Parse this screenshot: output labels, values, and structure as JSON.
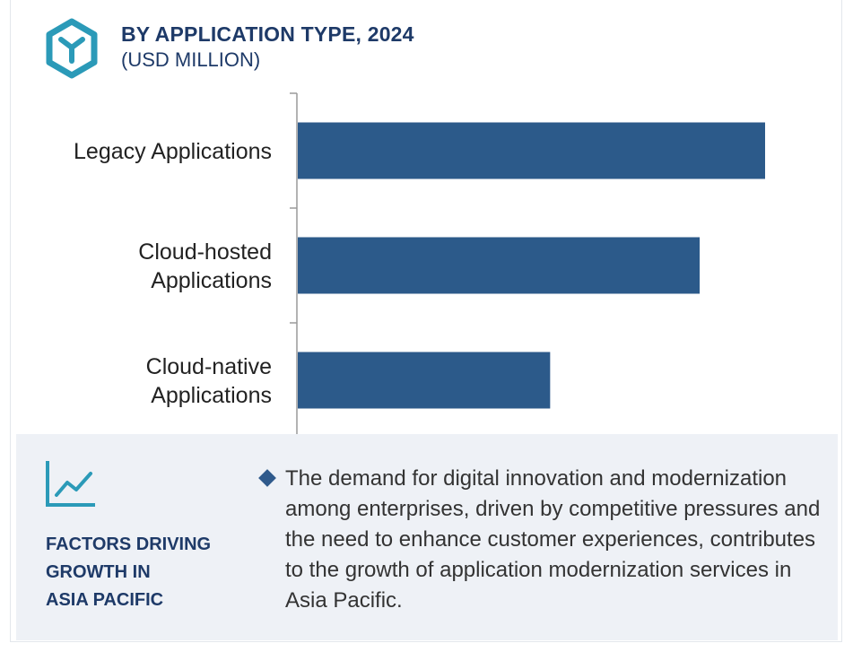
{
  "header": {
    "title": "BY APPLICATION TYPE, 2024",
    "subtitle": "(USD MILLION)",
    "logo_icon": "cube-y-icon",
    "accent_color": "#2b9ab8"
  },
  "chart_data": {
    "type": "bar",
    "orientation": "horizontal",
    "title": "BY APPLICATION TYPE, 2024",
    "subtitle": "(USD MILLION)",
    "categories": [
      "Legacy Applications",
      "Cloud-hosted Applications",
      "Cloud-native Applications"
    ],
    "category_lines": [
      [
        "Legacy Applications"
      ],
      [
        "Cloud-hosted",
        "Applications"
      ],
      [
        "Cloud-native",
        "Applications"
      ]
    ],
    "values": [
      100,
      86,
      54
    ],
    "value_scale": "relative (no axis values shown)",
    "bar_color": "#2c5a8a",
    "grid": false,
    "legend": "none"
  },
  "factors": {
    "icon": "trend-line-icon",
    "heading": "FACTORS DRIVING\nGROWTH IN\nASIA PACIFIC",
    "bullet_icon": "diamond-bullet-icon",
    "text": "The demand for digital innovation and modernization among enterprises, driven by competitive pressures and the need to enhance customer experiences, contributes to the growth of application modernization services in Asia Pacific."
  }
}
